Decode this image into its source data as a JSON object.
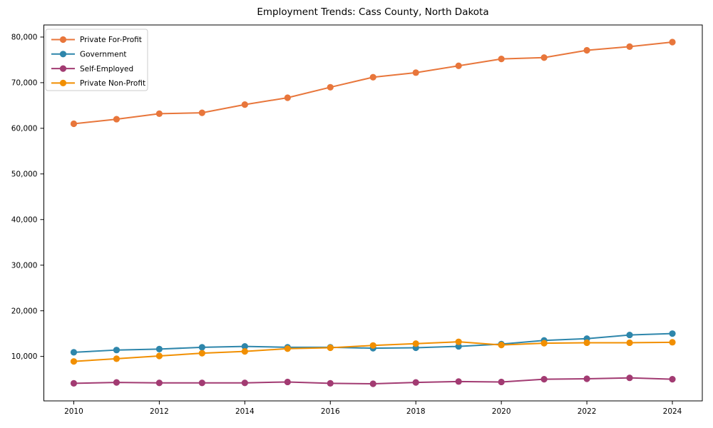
{
  "chart_data": {
    "type": "line",
    "title": "Employment Trends: Cass County, North Dakota",
    "xlabel": "",
    "ylabel": "",
    "x": [
      2010,
      2011,
      2012,
      2013,
      2014,
      2015,
      2016,
      2017,
      2018,
      2019,
      2020,
      2021,
      2022,
      2023,
      2024
    ],
    "series": [
      {
        "name": "Private For-Profit",
        "color": "#E8763B",
        "values": [
          61000,
          62000,
          63200,
          63400,
          65200,
          66700,
          69000,
          71200,
          72200,
          73700,
          75200,
          75500,
          77100,
          77900,
          78900
        ]
      },
      {
        "name": "Government",
        "color": "#2E86AB",
        "values": [
          10900,
          11400,
          11600,
          12000,
          12200,
          12000,
          12000,
          11800,
          11900,
          12200,
          12700,
          13500,
          13900,
          14700,
          15000
        ]
      },
      {
        "name": "Self-Employed",
        "color": "#A23B72",
        "values": [
          4100,
          4300,
          4200,
          4200,
          4200,
          4400,
          4100,
          4000,
          4300,
          4500,
          4400,
          5000,
          5100,
          5300,
          5000
        ]
      },
      {
        "name": "Private Non-Profit",
        "color": "#F18F01",
        "values": [
          8900,
          9500,
          10100,
          10700,
          11100,
          11700,
          11900,
          12400,
          12800,
          13200,
          12500,
          12900,
          13000,
          13000,
          13100
        ]
      }
    ],
    "x_ticks": [
      2010,
      2012,
      2014,
      2016,
      2018,
      2020,
      2022,
      2024
    ],
    "y_ticks": [
      10000,
      20000,
      30000,
      40000,
      50000,
      60000,
      70000,
      80000
    ],
    "y_tick_labels": [
      "10,000",
      "20,000",
      "30,000",
      "40,000",
      "50,000",
      "60,000",
      "70,000",
      "80,000"
    ],
    "xlim": [
      2009.3,
      2024.7
    ],
    "ylim": [
      250,
      82650
    ],
    "grid": false,
    "legend": {
      "position": "upper-left",
      "entries": [
        "Private For-Profit",
        "Government",
        "Self-Employed",
        "Private Non-Profit"
      ]
    },
    "marker": "circle",
    "background_color": "#ffffff",
    "axis_color": "#000000",
    "legend_border_color": "#cccccc"
  }
}
